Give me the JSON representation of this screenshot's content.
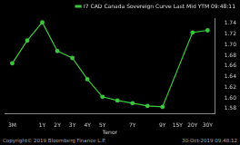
{
  "chart_data": {
    "type": "line",
    "x_label": "Tenor",
    "categories": [
      "3M",
      null,
      "1Y",
      "2Y",
      "3Y",
      "4Y",
      "5Y",
      null,
      "7Y",
      null,
      "9Y",
      "15Y",
      "20Y",
      "30Y"
    ],
    "series": [
      {
        "name": "I7 CAD Canada Sovereign Curve Last Mid YTM 09:48:11",
        "color": "#3cc83c",
        "marker": "circle",
        "values": [
          1.665,
          1.708,
          1.742,
          1.688,
          1.675,
          1.635,
          1.602,
          1.595,
          1.59,
          1.585,
          1.583,
          null,
          1.723,
          1.727
        ]
      }
    ],
    "ylim": [
      1.57,
      1.75
    ],
    "yticks": [
      1.58,
      1.6,
      1.62,
      1.64,
      1.66,
      1.68,
      1.7,
      1.72,
      1.74
    ],
    "grid": false,
    "legend": "upper right",
    "source": "Copyright© 2019 Bloomberg Finance L.P.",
    "timestamp": "30-Oct-2019 09:48:12"
  }
}
